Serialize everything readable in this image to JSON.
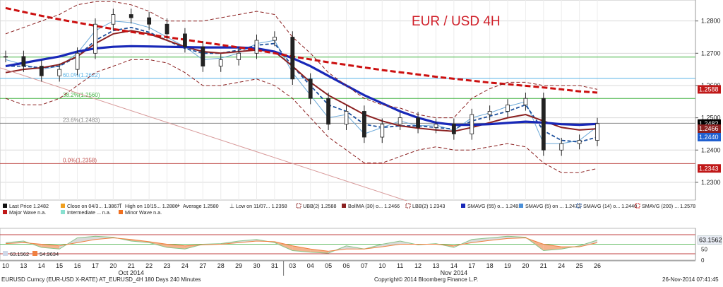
{
  "chart_data": {
    "type": "line",
    "title": "EUR / USD 4H",
    "title_color": "#d0202a",
    "ylim": [
      1.2245,
      1.2865
    ],
    "y_ticks": [
      1.28,
      1.27,
      1.26,
      1.25,
      1.24,
      1.23
    ],
    "y_tick_labels": [
      "1.2800",
      "1.2700",
      "1.2600",
      "1.2500",
      "1.2400",
      "1.2300"
    ],
    "x_labels": [
      "10",
      "13",
      "14",
      "15",
      "16",
      "17",
      "20",
      "21",
      "22",
      "23",
      "24",
      "27",
      "28",
      "29",
      "30",
      "31",
      "03",
      "04",
      "05",
      "06",
      "07",
      "10",
      "11",
      "12",
      "13",
      "14",
      "17",
      "18",
      "19",
      "20",
      "21",
      "24",
      "25",
      "26"
    ],
    "month_labels": [
      "Oct 2014",
      "Nov 2014"
    ],
    "grid": true,
    "fib_levels": [
      {
        "label": "60.0%(1.2622)",
        "value": 1.2622,
        "color": "#5ab3e6"
      },
      {
        "label": "38.2%(1.2560)",
        "value": 1.256,
        "color": "#43b343"
      },
      {
        "label": "23.6%(1.2483)",
        "value": 1.2483,
        "color": "#888888"
      },
      {
        "label": "0.0%(1.2358)",
        "value": 1.2358,
        "color": "#c0504d"
      }
    ],
    "major_level": {
      "value": 1.2688,
      "color": "#43b343"
    },
    "price_tags": [
      {
        "label": "1.2588",
        "value": 1.2588,
        "color": "#c01818"
      },
      {
        "label": "1.2482",
        "value": 1.2482,
        "color": "#000000"
      },
      {
        "label": "1.2466",
        "value": 1.2466,
        "color": "#8b2020"
      },
      {
        "label": "1.2440",
        "value": 1.244,
        "color": "#1f5fd0"
      },
      {
        "label": "1.2343",
        "value": 1.2343,
        "color": "#c01818"
      }
    ],
    "series": [
      {
        "key": "price",
        "color": "#404040",
        "values": [
          1.269,
          1.266,
          1.263,
          1.265,
          1.27,
          1.279,
          1.282,
          1.281,
          1.279,
          1.276,
          1.272,
          1.266,
          1.268,
          1.27,
          1.274,
          1.275,
          1.262,
          1.256,
          1.248,
          1.252,
          1.244,
          1.248,
          1.25,
          1.247,
          1.248,
          1.245,
          1.251,
          1.252,
          1.254,
          1.256,
          1.24,
          1.242,
          1.243,
          1.2482
        ]
      },
      {
        "key": "sma5",
        "color": "#6aa8d8",
        "values": [
          1.268,
          1.2665,
          1.265,
          1.266,
          1.27,
          1.277,
          1.28,
          1.2795,
          1.278,
          1.275,
          1.272,
          1.268,
          1.2685,
          1.27,
          1.273,
          1.274,
          1.264,
          1.257,
          1.25,
          1.251,
          1.245,
          1.247,
          1.249,
          1.2475,
          1.2478,
          1.246,
          1.25,
          1.2515,
          1.2535,
          1.255,
          1.242,
          1.242,
          1.243,
          1.2473
        ]
      },
      {
        "key": "sma14",
        "color": "#1b4f9c",
        "dashed": true,
        "values": [
          1.266,
          1.266,
          1.2655,
          1.266,
          1.269,
          1.274,
          1.277,
          1.278,
          1.2765,
          1.274,
          1.2715,
          1.27,
          1.27,
          1.271,
          1.2725,
          1.273,
          1.266,
          1.26,
          1.254,
          1.252,
          1.248,
          1.247,
          1.2475,
          1.2475,
          1.247,
          1.2465,
          1.249,
          1.2505,
          1.252,
          1.254,
          1.246,
          1.243,
          1.2425,
          1.244
        ]
      },
      {
        "key": "bollma30",
        "color": "#8b2020",
        "values": [
          1.264,
          1.265,
          1.2655,
          1.2665,
          1.269,
          1.273,
          1.276,
          1.277,
          1.276,
          1.274,
          1.272,
          1.2705,
          1.27,
          1.2705,
          1.271,
          1.2705,
          1.266,
          1.261,
          1.257,
          1.254,
          1.251,
          1.249,
          1.2475,
          1.2468,
          1.2462,
          1.2458,
          1.247,
          1.2485,
          1.25,
          1.251,
          1.249,
          1.247,
          1.2462,
          1.2466
        ]
      },
      {
        "key": "sma55",
        "color": "#1828b8",
        "values": [
          1.266,
          1.267,
          1.268,
          1.269,
          1.2705,
          1.2715,
          1.272,
          1.2722,
          1.2721,
          1.272,
          1.2719,
          1.2718,
          1.2718,
          1.2718,
          1.2715,
          1.2705,
          1.2685,
          1.266,
          1.263,
          1.26,
          1.257,
          1.2545,
          1.252,
          1.25,
          1.2485,
          1.2478,
          1.2478,
          1.248,
          1.2484,
          1.2488,
          1.2485,
          1.248,
          1.2478,
          1.2481
        ]
      },
      {
        "key": "sma200",
        "color": "#cc1010",
        "dashed": true,
        "values": [
          1.284,
          1.2828,
          1.2816,
          1.2805,
          1.2795,
          1.2785,
          1.2775,
          1.2766,
          1.2758,
          1.275,
          1.2742,
          1.2734,
          1.2726,
          1.2718,
          1.271,
          1.27,
          1.269,
          1.2681,
          1.2672,
          1.2664,
          1.2656,
          1.2648,
          1.2641,
          1.2634,
          1.2627,
          1.2621,
          1.2615,
          1.2609,
          1.2604,
          1.2599,
          1.2594,
          1.2588,
          1.2582,
          1.2578
        ]
      },
      {
        "key": "ubb",
        "color": "#8b2020",
        "dashed": true,
        "values": [
          1.276,
          1.278,
          1.28,
          1.282,
          1.285,
          1.286,
          1.286,
          1.285,
          1.283,
          1.28,
          1.28,
          1.28,
          1.281,
          1.282,
          1.283,
          1.282,
          1.275,
          1.27,
          1.264,
          1.26,
          1.256,
          1.254,
          1.253,
          1.251,
          1.25,
          1.25,
          1.256,
          1.259,
          1.261,
          1.261,
          1.26,
          1.26,
          1.26,
          1.2588
        ]
      },
      {
        "key": "lbb",
        "color": "#8b2020",
        "dashed": true,
        "values": [
          1.256,
          1.254,
          1.254,
          1.256,
          1.26,
          1.264,
          1.266,
          1.268,
          1.268,
          1.267,
          1.264,
          1.26,
          1.26,
          1.261,
          1.262,
          1.26,
          1.256,
          1.25,
          1.244,
          1.24,
          1.236,
          1.236,
          1.238,
          1.24,
          1.241,
          1.24,
          1.24,
          1.241,
          1.242,
          1.241,
          1.236,
          1.233,
          1.233,
          1.2343
        ]
      }
    ],
    "oscillator": {
      "ylim": [
        0,
        100
      ],
      "levels": [
        80,
        50,
        20
      ],
      "value_label": "63.1562",
      "tick_labels": [
        "50",
        "0"
      ],
      "values": [
        55,
        60,
        40,
        35,
        70,
        75,
        72,
        60,
        55,
        40,
        35,
        50,
        52,
        60,
        65,
        55,
        30,
        25,
        22,
        45,
        35,
        50,
        60,
        48,
        52,
        40,
        65,
        70,
        75,
        72,
        30,
        35,
        45,
        63
      ],
      "ma_values": [
        52,
        55,
        50,
        45,
        55,
        65,
        70,
        65,
        58,
        50,
        45,
        48,
        50,
        55,
        60,
        58,
        45,
        35,
        28,
        35,
        35,
        42,
        50,
        50,
        50,
        45,
        55,
        62,
        68,
        70,
        50,
        42,
        42,
        55
      ]
    }
  },
  "legend": {
    "row1": [
      {
        "marker": "sq",
        "color": "#111111",
        "text": "Last Price   1.2482"
      },
      {
        "marker": "sq",
        "color": "#f0a020",
        "text": "Close on 04/3...  1.3867"
      },
      {
        "marker": "T",
        "color": "#333333",
        "text": "High on 10/15...  1.2886"
      },
      {
        "marker": "plus",
        "color": "#333333",
        "text": "Average  1.2580"
      },
      {
        "marker": "L",
        "color": "#333333",
        "text": "Low on 11/07...  1.2358"
      },
      {
        "marker": "dash",
        "color": "#8b2020",
        "text": "UBB(2)  1.2588"
      },
      {
        "marker": "sq",
        "color": "#8b2020",
        "text": "BollMA (30) o...  1.2466"
      },
      {
        "marker": "dash",
        "color": "#8b2020",
        "text": "LBB(2)  1.2343"
      },
      {
        "marker": "sq",
        "color": "#1828b8",
        "text": "SMAVG (55) o...  1.2481"
      },
      {
        "marker": "sq",
        "color": "#4a90d9",
        "text": "SMAVG (5) on ...  1.2473"
      },
      {
        "marker": "dash",
        "color": "#1b4f9c",
        "text": "SMAVG (14) o...  1.2440"
      },
      {
        "marker": "dash",
        "color": "#cc1010",
        "text": "SMAVG (200) ...  1.2578"
      }
    ],
    "row2": [
      {
        "marker": "sq",
        "color": "#c01818",
        "text": "Major Wave   n.a."
      },
      {
        "marker": "sq",
        "color": "#88e0d0",
        "text": "Intermediate ...  n.a."
      },
      {
        "marker": "sq",
        "color": "#f07020",
        "text": "Minor Wave    n.a."
      }
    ]
  },
  "osc_legend": [
    {
      "color": "#cfd8e8",
      "text": "63.1562"
    },
    {
      "color": "#f08040",
      "text": "54.9634"
    }
  ],
  "footer": {
    "left": "EURUSD Curncy (EUR-USD X-RATE) AT_EURUSD_4H 180 Days 240 Minutes",
    "center": "Copyright© 2014 Bloomberg Finance L.P.",
    "right": "26-Nov-2014 07:41:45"
  }
}
